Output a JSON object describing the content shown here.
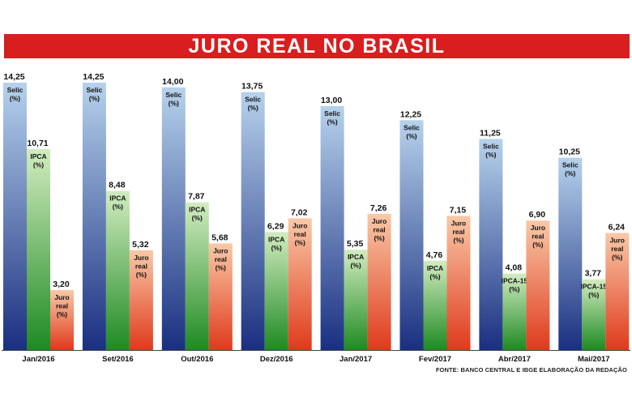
{
  "title": "JURO REAL NO BRASIL",
  "source": "FONTE: BANCO CENTRAL E IBGE ELABORAÇÃO DA REDAÇÃO",
  "colors": {
    "banner": "#d81e1e",
    "selic_top": "#b6d2ec",
    "selic_bottom": "#1a2f80",
    "ipca_top": "#d2ecc0",
    "ipca_bottom": "#1e8a22",
    "juro_top": "#f9c9a8",
    "juro_bottom": "#df3a1c"
  },
  "chart_data": {
    "type": "bar",
    "title": "JURO REAL NO BRASIL",
    "categories": [
      "Jan/2016",
      "Set/2016",
      "Out/2016",
      "Dez/2016",
      "Jan/2017",
      "Fev/2017",
      "Abr/2017",
      "Mai/2017"
    ],
    "ylim": [
      0,
      14.25
    ],
    "grid": false,
    "legend": "none",
    "series": [
      {
        "key": "selic",
        "labels": [
          "Selic\n(%)",
          "Selic\n(%)",
          "Selic\n(%)",
          "Selic\n(%)",
          "Selic\n(%)",
          "Selic\n(%)",
          "Selic\n(%)",
          "Selic\n(%)"
        ],
        "values": [
          14.25,
          14.25,
          14.0,
          13.75,
          13.0,
          12.25,
          11.25,
          10.25
        ],
        "value_labels": [
          "14,25",
          "14,25",
          "14,00",
          "13,75",
          "13,00",
          "12,25",
          "11,25",
          "10,25"
        ]
      },
      {
        "key": "ipca",
        "labels": [
          "IPCA\n(%)",
          "IPCA\n(%)",
          "IPCA\n(%)",
          "IPCA\n(%)",
          "IPCA\n(%)",
          "IPCA\n(%)",
          "IPCA-15\n(%)",
          "IPCA-15\n(%)"
        ],
        "values": [
          10.71,
          8.48,
          7.87,
          6.29,
          5.35,
          4.76,
          4.08,
          3.77
        ],
        "value_labels": [
          "10,71",
          "8,48",
          "7,87",
          "6,29",
          "5,35",
          "4,76",
          "4,08",
          "3,77"
        ]
      },
      {
        "key": "juro",
        "labels": [
          "Juro\nreal\n(%)",
          "Juro\nreal\n(%)",
          "Juro\nreal\n(%)",
          "Juro\nreal\n(%)",
          "Juro\nreal\n(%)",
          "Juro\nreal\n(%)",
          "Juro\nreal\n(%)",
          "Juro\nreal\n(%)"
        ],
        "values": [
          3.2,
          5.32,
          5.68,
          7.02,
          7.26,
          7.15,
          6.9,
          6.24
        ],
        "value_labels": [
          "3,20",
          "5,32",
          "5,68",
          "7,02",
          "7,26",
          "7,15",
          "6,90",
          "6,24"
        ]
      }
    ]
  }
}
